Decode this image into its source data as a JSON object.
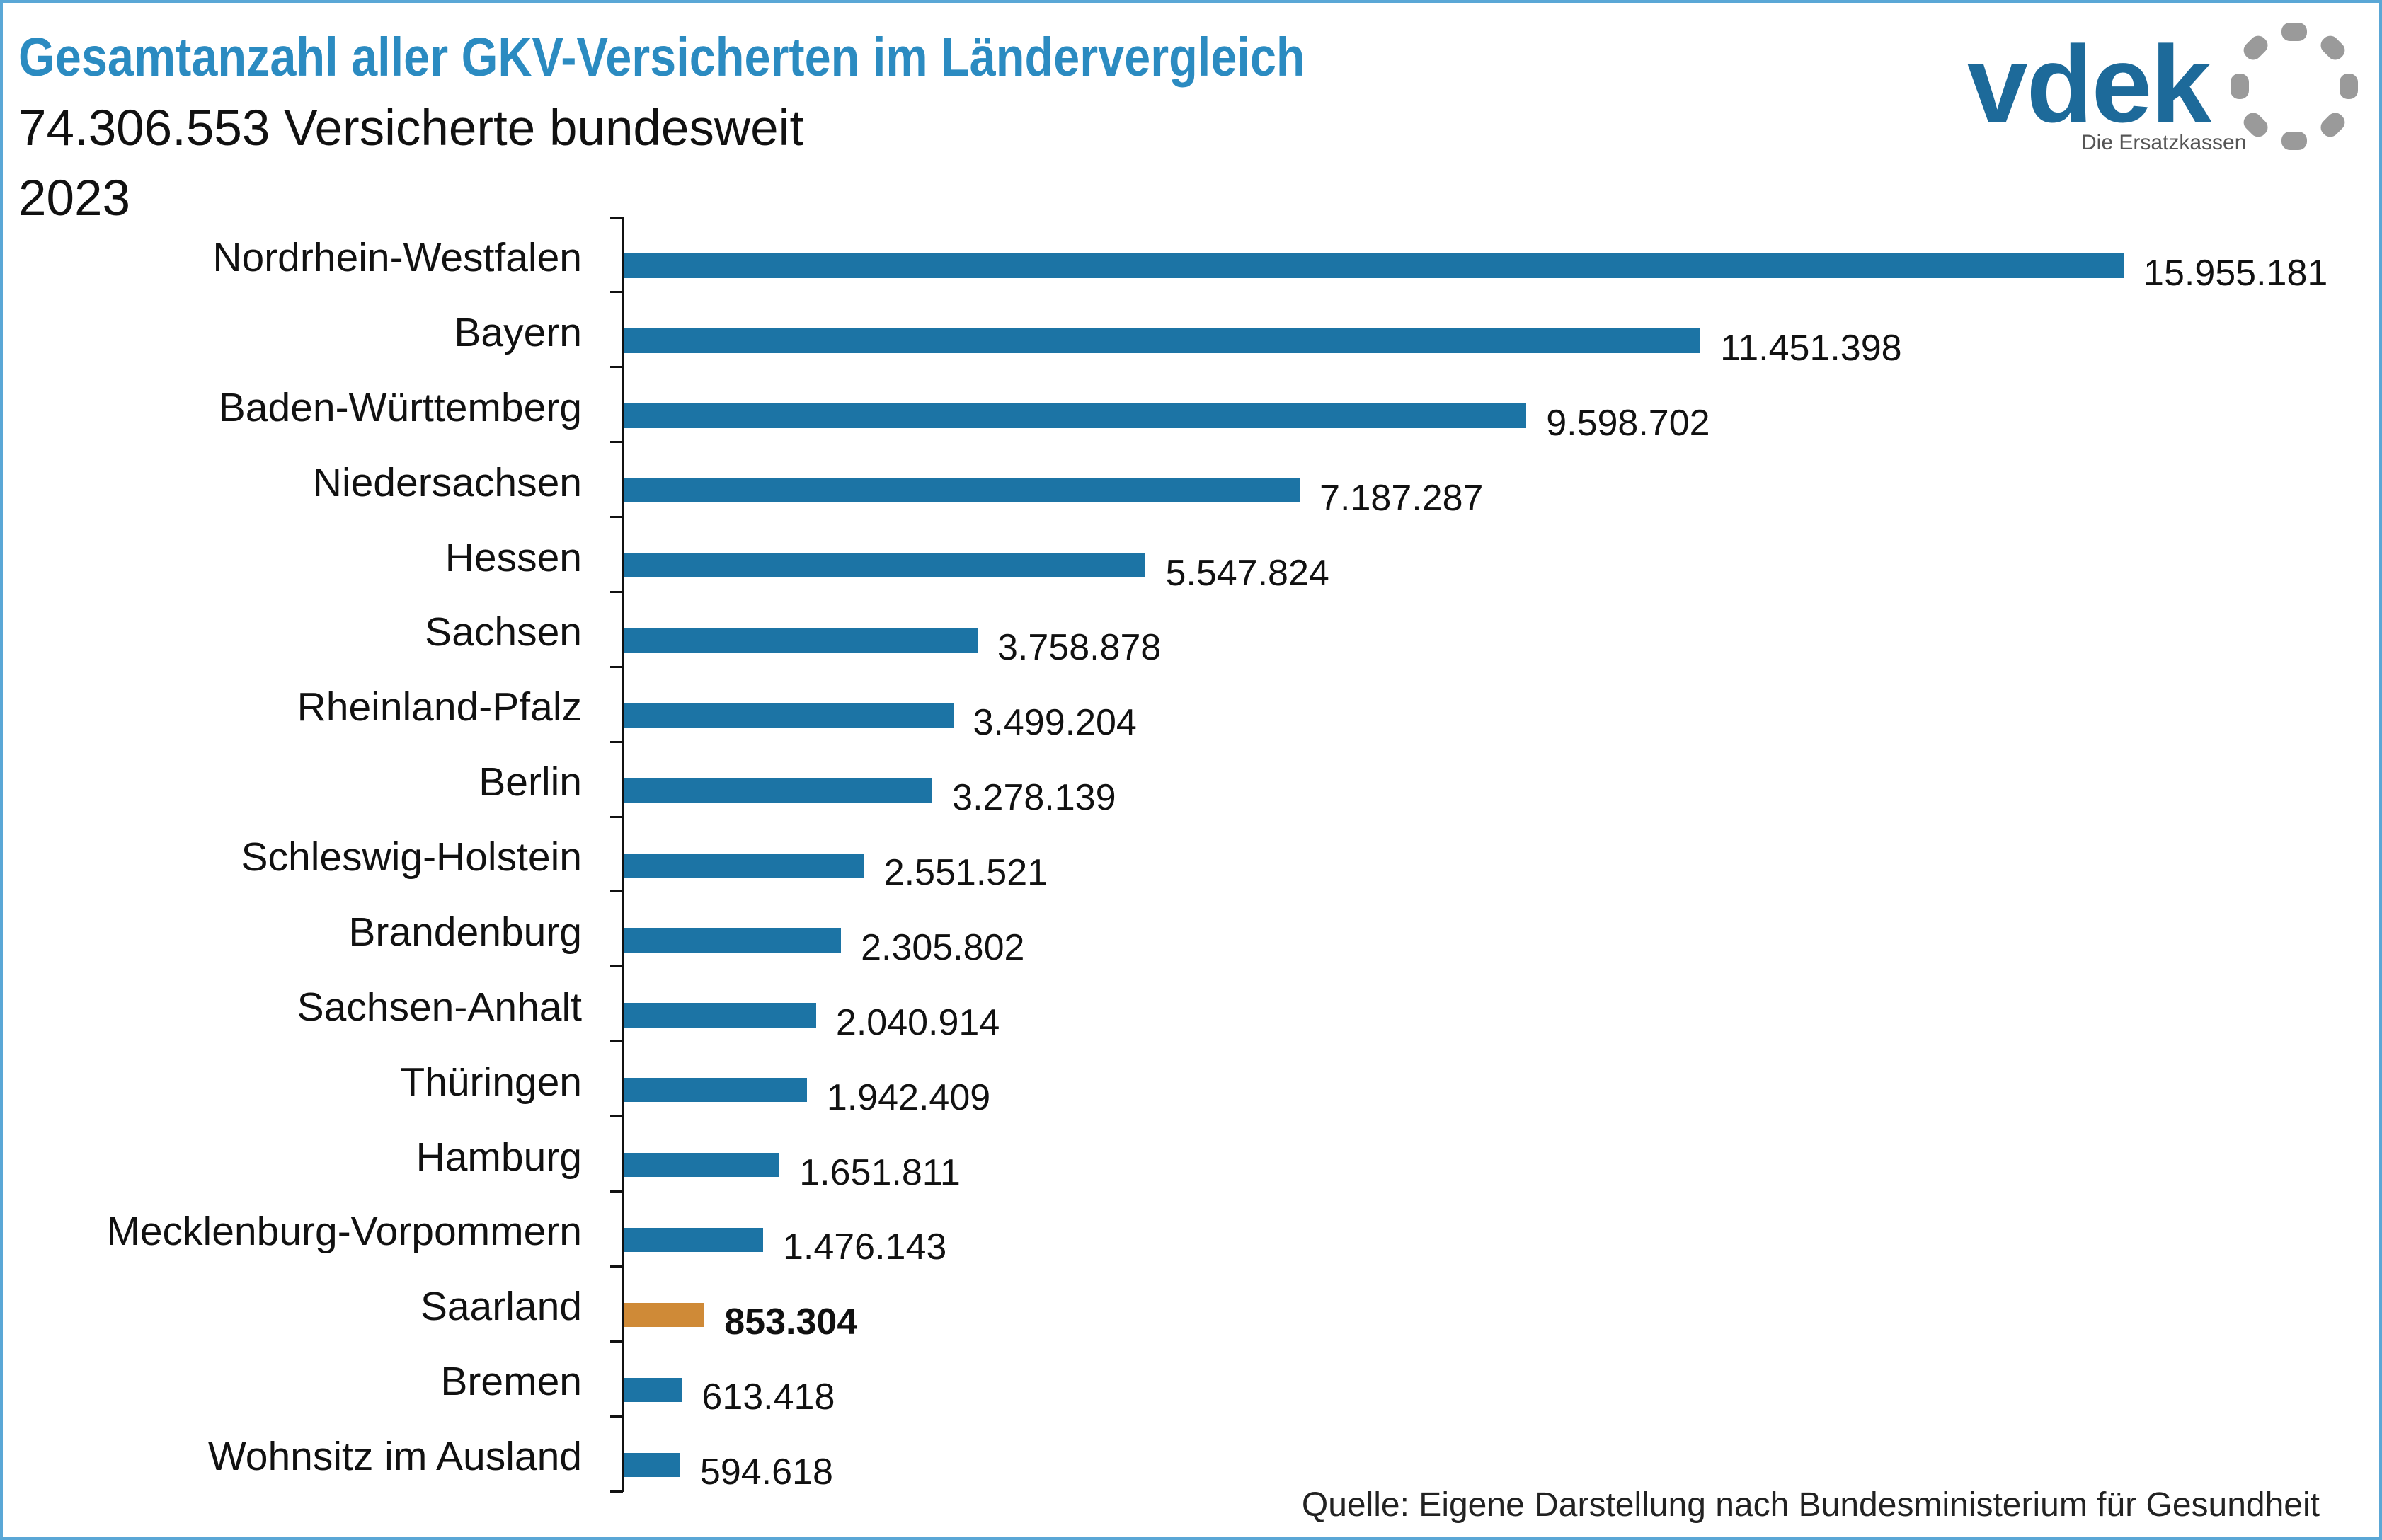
{
  "chart_data": {
    "type": "bar",
    "orientation": "horizontal",
    "title": "Gesamtanzahl aller GKV-Versicherten im Ländervergleich",
    "subtitle": "74.306.553 Versicherte bundesweit",
    "year": "2023",
    "categories": [
      "Nordrhein-Westfalen",
      "Bayern",
      "Baden-Württemberg",
      "Niedersachsen",
      "Hessen",
      "Sachsen",
      "Rheinland-Pfalz",
      "Berlin",
      "Schleswig-Holstein",
      "Brandenburg",
      "Sachsen-Anhalt",
      "Thüringen",
      "Hamburg",
      "Mecklenburg-Vorpommern",
      "Saarland",
      "Bremen",
      "Wohnsitz im Ausland"
    ],
    "values": [
      15955181,
      11451398,
      9598702,
      7187287,
      5547824,
      3758878,
      3499204,
      3278139,
      2551521,
      2305802,
      2040914,
      1942409,
      1651811,
      1476143,
      853304,
      613418,
      594618
    ],
    "value_labels": [
      "15.955.181",
      "11.451.398",
      "9.598.702",
      "7.187.287",
      "5.547.824",
      "3.758.878",
      "3.499.204",
      "3.278.139",
      "2.551.521",
      "2.305.802",
      "2.040.914",
      "1.942.409",
      "1.651.811",
      "1.476.143",
      "853.304",
      "613.418",
      "594.618"
    ],
    "highlight_index": 14,
    "bar_color": "#1c74a5",
    "highlight_color": "#cf8a37",
    "xlim": [
      0,
      16000000
    ],
    "grid": false
  },
  "logo": {
    "wordmark": "vdek",
    "tagline": "Die Ersatzkassen",
    "icon": "vdek-ring-icon",
    "wordmark_color": "#1d6a9a",
    "ring_color": "#9a9a9a"
  },
  "source": "Quelle: Eigene Darstellung nach Bundesministerium für Gesundheit",
  "colors": {
    "title": "#2b8bc1",
    "text": "#111111",
    "frame": "#5aa7d6"
  }
}
